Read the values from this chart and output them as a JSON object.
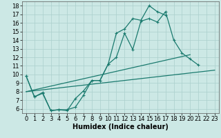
{
  "background_color": "#cce8e5",
  "grid_color": "#aacfcc",
  "line_color": "#1a7a6e",
  "xlim": [
    -0.5,
    23.5
  ],
  "ylim": [
    5.5,
    18.5
  ],
  "yticks": [
    6,
    7,
    8,
    9,
    10,
    11,
    12,
    13,
    14,
    15,
    16,
    17,
    18
  ],
  "xticks": [
    0,
    1,
    2,
    3,
    4,
    5,
    6,
    7,
    8,
    9,
    10,
    11,
    12,
    13,
    14,
    15,
    16,
    17,
    18,
    19,
    20,
    21,
    22,
    23
  ],
  "xlabel": "Humidex (Indice chaleur)",
  "line1_x": [
    0,
    1,
    2,
    3,
    4,
    5,
    6,
    7,
    8,
    9,
    10,
    11,
    12,
    13,
    14,
    15,
    16,
    17,
    18,
    19,
    20,
    21
  ],
  "line1_y": [
    9.8,
    7.4,
    7.8,
    5.8,
    5.9,
    5.9,
    6.2,
    7.6,
    9.3,
    9.3,
    11.2,
    12.0,
    14.8,
    12.9,
    16.2,
    16.5,
    16.1,
    17.3,
    14.0,
    12.5,
    11.8,
    11.1
  ],
  "line2_x": [
    0,
    1,
    2,
    3,
    4,
    5,
    6,
    7,
    8,
    9,
    10,
    11,
    12,
    13,
    14,
    15,
    16,
    17
  ],
  "line2_y": [
    9.8,
    7.4,
    7.9,
    5.8,
    5.9,
    5.8,
    7.2,
    8.1,
    9.3,
    9.3,
    11.2,
    14.8,
    15.3,
    16.5,
    16.3,
    18.0,
    17.3,
    16.9
  ],
  "line3_x": [
    0,
    23
  ],
  "line3_y": [
    8.0,
    10.5
  ],
  "line4_x": [
    0,
    20
  ],
  "line4_y": [
    8.0,
    12.3
  ],
  "font_size_label": 7,
  "font_size_tick": 6
}
